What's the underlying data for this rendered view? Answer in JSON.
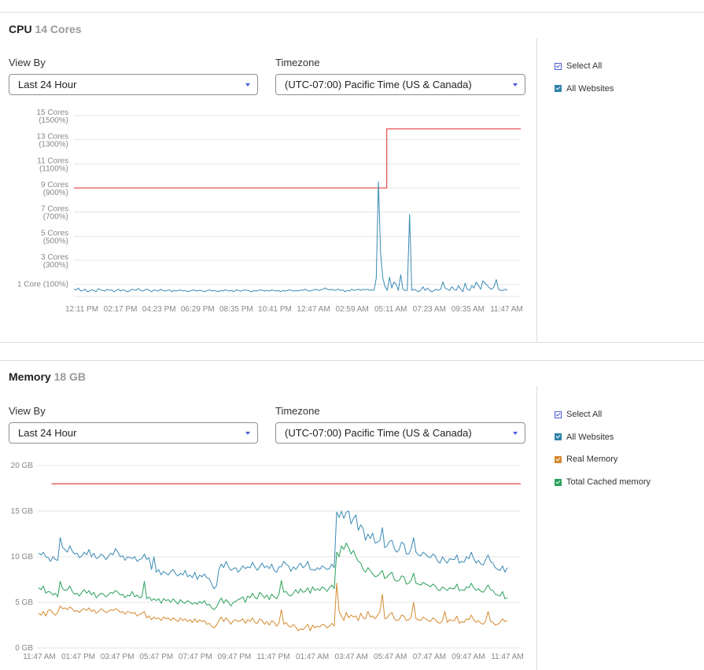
{
  "cpu": {
    "title": "CPU",
    "subtitle": "14 Cores",
    "view_by_label": "View By",
    "view_by_value": "Last 24 Hour",
    "timezone_label": "Timezone",
    "timezone_value": "(UTC-07:00) Pacific Time (US & Canada)",
    "legend": [
      {
        "label": "Select All",
        "style": "outline",
        "color": "#4a5bd8"
      },
      {
        "label": "All Websites",
        "style": "filled",
        "color": "#2f83a8"
      }
    ]
  },
  "memory": {
    "title": "Memory",
    "subtitle": "18 GB",
    "view_by_label": "View By",
    "view_by_value": "Last 24 Hour",
    "timezone_label": "Timezone",
    "timezone_value": "(UTC-07:00) Pacific Time (US & Canada)",
    "legend": [
      {
        "label": "Select All",
        "style": "outline",
        "color": "#4a5bd8"
      },
      {
        "label": "All Websites",
        "style": "filled",
        "color": "#2f83a8"
      },
      {
        "label": "Real Memory",
        "style": "filled",
        "color": "#d58a30"
      },
      {
        "label": "Total Cached memory",
        "style": "filled",
        "color": "#2aa05a"
      }
    ]
  },
  "chart_data": [
    {
      "type": "line",
      "ylim": [
        0,
        15
      ],
      "y_ticks": [
        {
          "value": 15,
          "lines": [
            "15 Cores",
            "(1500%)"
          ]
        },
        {
          "value": 13,
          "lines": [
            "13 Cores",
            "(1300%)"
          ]
        },
        {
          "value": 11,
          "lines": [
            "11 Cores",
            "(1100%)"
          ]
        },
        {
          "value": 9,
          "lines": [
            "9 Cores",
            "(900%)"
          ]
        },
        {
          "value": 7,
          "lines": [
            "7 Cores",
            "(700%)"
          ]
        },
        {
          "value": 5,
          "lines": [
            "5 Cores",
            "(500%)"
          ]
        },
        {
          "value": 3,
          "lines": [
            "3 Cores",
            "(300%)"
          ]
        },
        {
          "value": 1,
          "lines": [
            "1 Core (100%)"
          ]
        }
      ],
      "x_tick_labels": [
        "12:11 PM",
        "02:17 PM",
        "04:23 PM",
        "06:29 PM",
        "08:35 PM",
        "10:41 PM",
        "12:47 AM",
        "02:59 AM",
        "05:11 AM",
        "07:23 AM",
        "09:35 AM",
        "11:47 AM"
      ],
      "limit_line": {
        "color": "#e85555",
        "points": [
          [
            0,
            9
          ],
          [
            0.7,
            9
          ],
          [
            0.7,
            13.9
          ],
          [
            1,
            13.9
          ]
        ]
      },
      "series": [
        {
          "color": "#3a8ab5",
          "values": [
            0.6,
            0.55,
            0.7,
            0.45,
            0.5,
            0.6,
            0.4,
            0.45,
            0.55,
            0.5,
            0.4,
            0.65,
            0.55,
            0.5,
            0.45,
            0.6,
            0.5,
            0.55,
            0.4,
            0.5,
            0.6,
            0.45,
            0.55,
            0.5,
            0.4,
            0.45,
            0.6,
            0.55,
            0.5,
            0.65,
            0.5,
            0.45,
            0.55,
            0.6,
            0.5,
            0.4,
            0.55,
            0.5,
            0.45,
            0.6,
            0.5,
            0.45,
            0.5,
            0.55,
            0.4,
            0.5,
            0.45,
            0.5,
            0.55,
            0.45,
            0.5,
            0.4,
            0.45,
            0.5,
            0.55,
            0.45,
            0.5,
            0.5,
            0.45,
            0.4,
            0.5,
            0.55,
            0.45,
            0.5,
            0.45,
            0.4,
            0.5,
            0.45,
            0.55,
            0.5,
            0.45,
            0.5,
            0.4,
            0.55,
            0.5,
            0.45,
            0.5,
            0.55,
            0.5,
            0.45,
            0.4,
            0.5,
            0.45,
            0.5,
            0.55,
            0.5,
            0.45,
            0.5,
            0.45,
            0.55,
            0.5,
            0.45,
            0.5,
            0.4,
            0.5,
            0.45,
            0.5,
            0.55,
            0.5,
            0.45,
            0.5,
            0.45,
            0.55,
            0.5,
            0.6,
            0.5,
            0.45,
            0.5,
            0.55,
            0.6,
            0.5,
            0.55,
            0.6,
            0.7,
            0.6,
            0.55,
            0.6,
            0.5,
            0.55,
            0.6,
            0.5,
            0.55,
            0.4,
            0.5,
            0.45,
            0.6,
            0.5,
            0.55,
            0.6,
            0.5,
            0.6,
            0.55,
            0.6,
            0.5,
            0.55,
            0.5,
            1.5,
            9.5,
            3.5,
            1.5,
            0.8,
            0.5,
            1.6,
            0.7,
            1.2,
            1.0,
            0.5,
            1.8,
            0.6,
            0.5,
            0.5,
            6.8,
            0.5,
            0.6,
            0.5,
            0.4,
            0.5,
            0.8,
            0.5,
            0.7,
            0.5,
            0.4,
            0.5,
            0.6,
            0.5,
            0.6,
            1.2,
            0.7,
            0.6,
            0.5,
            0.8,
            0.6,
            0.5,
            0.9,
            0.6,
            0.4,
            1.1,
            0.6,
            0.5,
            0.9,
            0.7,
            1.2,
            0.9,
            0.6,
            1.3,
            1.1,
            0.9,
            0.7,
            0.6,
            0.8,
            1.4,
            0.6,
            0.5,
            0.5,
            0.6,
            0.5
          ]
        }
      ]
    },
    {
      "type": "line",
      "ylim": [
        0,
        20
      ],
      "y_ticks": [
        {
          "value": 20,
          "lines": [
            "20 GB"
          ]
        },
        {
          "value": 15,
          "lines": [
            "15 GB"
          ]
        },
        {
          "value": 10,
          "lines": [
            "10 GB"
          ]
        },
        {
          "value": 5,
          "lines": [
            "5 GB"
          ]
        },
        {
          "value": 0,
          "lines": [
            "0 GB"
          ]
        }
      ],
      "x_tick_labels": [
        "11:47 AM",
        "01:47 PM",
        "03:47 PM",
        "05:47 PM",
        "07:47 PM",
        "09:47 PM",
        "11:47 PM",
        "01:47 AM",
        "03:47 AM",
        "05:47 AM",
        "07:47 AM",
        "09:47 AM",
        "11:47 AM"
      ],
      "limit_line": {
        "color": "#e85555",
        "points": [
          [
            0.03,
            18
          ],
          [
            1,
            18
          ]
        ]
      },
      "series": [
        {
          "name": "All Websites",
          "color": "#3a8ab5",
          "values": [
            10.4,
            10.2,
            10.5,
            10.0,
            9.9,
            9.5,
            10.0,
            9.7,
            9.6,
            12.1,
            11.0,
            10.8,
            10.5,
            11.2,
            10.6,
            10.3,
            10.4,
            9.9,
            10.1,
            10.5,
            10.2,
            10.8,
            10.0,
            10.4,
            9.8,
            9.9,
            10.3,
            10.1,
            9.7,
            10.0,
            10.4,
            10.2,
            10.9,
            10.5,
            10.0,
            10.1,
            9.6,
            10.0,
            9.9,
            9.8,
            10.0,
            9.5,
            9.7,
            9.8,
            10.3,
            9.7,
            9.9,
            8.6,
            10.0,
            8.3,
            8.6,
            8.0,
            8.4,
            8.2,
            8.0,
            8.4,
            8.6,
            8.1,
            7.9,
            8.2,
            8.0,
            8.5,
            7.8,
            8.0,
            7.7,
            8.3,
            7.5,
            8.0,
            7.8,
            8.1,
            7.7,
            7.6,
            7.0,
            6.5,
            6.8,
            8.6,
            9.2,
            8.8,
            9.5,
            8.9,
            8.5,
            8.7,
            8.8,
            8.3,
            8.6,
            9.0,
            8.7,
            8.9,
            8.8,
            9.4,
            8.9,
            8.5,
            8.9,
            9.3,
            8.8,
            9.0,
            8.7,
            9.2,
            8.5,
            8.3,
            8.9,
            8.9,
            9.5,
            9.2,
            9.0,
            8.4,
            8.9,
            8.6,
            9.0,
            9.3,
            8.8,
            9.0,
            9.5,
            8.6,
            8.6,
            8.5,
            8.8,
            8.6,
            9.0,
            8.8,
            8.6,
            8.7,
            9.2,
            8.8,
            14.9,
            14.3,
            15.0,
            14.2,
            14.9,
            15.0,
            13.6,
            14.2,
            14.6,
            12.9,
            13.5,
            13.1,
            11.8,
            12.5,
            12.0,
            12.6,
            11.5,
            11.6,
            11.8,
            13.2,
            11.0,
            11.2,
            11.7,
            11.8,
            10.9,
            10.5,
            10.8,
            11.6,
            11.4,
            10.3,
            10.3,
            10.9,
            12.1,
            10.5,
            10.2,
            10.1,
            10.5,
            10.3,
            10.0,
            9.9,
            10.3,
            10.1,
            9.5,
            9.3,
            10.0,
            9.6,
            9.3,
            9.8,
            9.7,
            9.7,
            10.2,
            9.3,
            9.5,
            9.4,
            10.0,
            9.8,
            10.5,
            9.8,
            9.3,
            9.6,
            9.2,
            9.1,
            9.7,
            10.2,
            9.5,
            9.3,
            8.8,
            8.6,
            8.5,
            9.0,
            8.3,
            8.8
          ]
        },
        {
          "name": "Total Cached memory",
          "color": "#2aa05a",
          "values": [
            6.6,
            6.4,
            6.8,
            6.0,
            6.2,
            6.1,
            5.8,
            6.0,
            5.6,
            7.3,
            6.5,
            6.3,
            6.4,
            6.8,
            6.2,
            5.9,
            6.0,
            5.7,
            6.1,
            6.4,
            6.0,
            6.3,
            5.8,
            6.1,
            5.5,
            5.8,
            6.0,
            5.9,
            5.6,
            5.8,
            6.1,
            6.0,
            6.3,
            6.1,
            5.8,
            5.9,
            5.5,
            5.8,
            5.7,
            6.2,
            5.6,
            5.8,
            5.5,
            5.6,
            7.3,
            5.4,
            5.6,
            5.2,
            5.4,
            5.2,
            5.4,
            4.9,
            5.4,
            5.2,
            5.3,
            5.0,
            5.4,
            5.1,
            4.8,
            5.3,
            5.0,
            4.9,
            5.2,
            5.0,
            4.8,
            5.0,
            4.8,
            5.1,
            4.9,
            5.2,
            4.7,
            4.8,
            4.4,
            4.2,
            4.5,
            5.0,
            5.5,
            4.9,
            5.3,
            5.0,
            4.6,
            5.0,
            5.1,
            5.3,
            5.4,
            5.6,
            5.0,
            5.7,
            5.5,
            6.0,
            5.5,
            5.4,
            6.1,
            5.8,
            5.5,
            5.8,
            5.3,
            5.9,
            5.6,
            5.4,
            5.9,
            7.4,
            6.1,
            6.2,
            5.8,
            5.7,
            6.0,
            6.4,
            6.0,
            6.5,
            6.1,
            6.2,
            6.6,
            6.0,
            6.7,
            6.3,
            6.5,
            6.3,
            6.7,
            6.5,
            6.2,
            6.6,
            6.9,
            6.5,
            10.5,
            10.0,
            11.2,
            10.8,
            11.5,
            11.0,
            10.3,
            10.7,
            10.0,
            9.5,
            9.3,
            8.6,
            8.3,
            8.8,
            8.5,
            8.1,
            7.8,
            7.9,
            8.2,
            8.5,
            7.6,
            7.8,
            8.1,
            8.3,
            7.5,
            7.3,
            7.4,
            7.9,
            7.8,
            7.0,
            7.1,
            7.4,
            8.2,
            7.1,
            7.0,
            6.9,
            7.2,
            7.0,
            6.9,
            6.7,
            7.0,
            6.8,
            6.4,
            6.3,
            6.7,
            6.5,
            6.3,
            6.6,
            6.5,
            6.5,
            7.0,
            6.3,
            6.4,
            6.3,
            6.7,
            6.6,
            7.1,
            6.6,
            6.3,
            6.5,
            6.2,
            6.1,
            6.5,
            6.9,
            6.4,
            6.3,
            5.9,
            5.8,
            5.7,
            6.2,
            5.4,
            5.5
          ]
        },
        {
          "name": "Real Memory",
          "color": "#d58a30",
          "values": [
            3.8,
            3.6,
            4.0,
            3.5,
            4.1,
            4.2,
            3.8,
            3.6,
            3.9,
            4.6,
            4.3,
            4.4,
            4.2,
            4.5,
            4.3,
            4.0,
            4.1,
            3.9,
            4.2,
            4.3,
            4.1,
            4.4,
            4.0,
            4.2,
            3.8,
            4.0,
            4.3,
            4.1,
            3.9,
            4.0,
            4.2,
            4.1,
            4.3,
            4.2,
            3.9,
            4.0,
            3.7,
            4.0,
            3.9,
            3.8,
            3.9,
            3.5,
            3.7,
            3.8,
            4.0,
            3.3,
            3.5,
            3.1,
            3.4,
            3.2,
            3.3,
            3.0,
            3.4,
            3.2,
            3.3,
            3.0,
            3.3,
            3.1,
            2.9,
            3.3,
            3.0,
            3.2,
            2.9,
            3.1,
            2.8,
            3.2,
            2.8,
            3.1,
            2.9,
            3.0,
            2.6,
            2.7,
            2.4,
            2.2,
            2.5,
            3.0,
            3.4,
            2.9,
            3.3,
            3.0,
            2.6,
            3.0,
            3.1,
            2.9,
            3.0,
            3.2,
            2.7,
            3.1,
            2.9,
            3.3,
            2.8,
            2.7,
            3.2,
            3.0,
            2.6,
            2.9,
            2.5,
            3.0,
            2.8,
            2.4,
            2.7,
            4.2,
            2.6,
            2.8,
            2.4,
            2.3,
            2.6,
            2.3,
            1.9,
            2.1,
            2.0,
            2.3,
            2.6,
            1.9,
            2.5,
            2.2,
            2.4,
            2.3,
            2.6,
            2.5,
            2.2,
            2.4,
            2.7,
            2.4,
            7.1,
            4.0,
            3.5,
            3.0,
            3.9,
            3.3,
            3.6,
            3.4,
            3.5,
            3.0,
            3.8,
            3.3,
            3.2,
            4.0,
            3.4,
            3.5,
            3.2,
            3.6,
            4.0,
            5.9,
            3.2,
            3.3,
            3.7,
            3.9,
            3.2,
            3.0,
            3.1,
            3.6,
            3.5,
            3.0,
            3.1,
            3.4,
            5.0,
            3.2,
            3.1,
            3.0,
            3.4,
            3.2,
            3.0,
            2.9,
            3.3,
            3.1,
            2.8,
            2.7,
            3.0,
            4.0,
            2.8,
            3.1,
            3.0,
            3.0,
            3.5,
            2.7,
            2.9,
            2.8,
            3.2,
            3.1,
            3.6,
            3.1,
            2.8,
            3.0,
            2.7,
            2.6,
            3.0,
            4.0,
            2.9,
            2.8,
            2.5,
            2.6,
            2.8,
            3.2,
            2.9,
            3.0
          ]
        }
      ]
    }
  ]
}
